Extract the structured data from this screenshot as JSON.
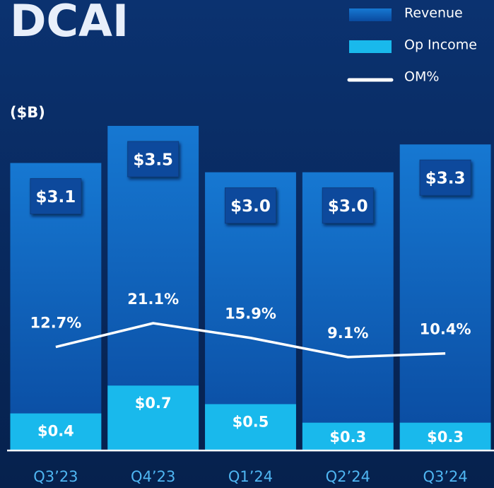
{
  "chart_data": {
    "type": "bar",
    "title": "DCAI",
    "y_label": "($B)",
    "categories": [
      "Q3’23",
      "Q4’23",
      "Q1’24",
      "Q2’24",
      "Q3’24"
    ],
    "series": [
      {
        "name": "Revenue",
        "color": "#1678d2",
        "values": [
          3.1,
          3.5,
          3.0,
          3.0,
          3.3
        ],
        "value_labels": [
          "$3.1",
          "$3.5",
          "$3.0",
          "$3.0",
          "$3.3"
        ]
      },
      {
        "name": "Op Income",
        "color": "#19b9ec",
        "values": [
          0.4,
          0.7,
          0.5,
          0.3,
          0.3
        ],
        "value_labels": [
          "$0.4",
          "$0.7",
          "$0.5",
          "$0.3",
          "$0.3"
        ]
      },
      {
        "name": "OM%",
        "color": "#ffffff",
        "axis": "y2",
        "values": [
          12.7,
          21.1,
          15.9,
          9.1,
          10.4
        ],
        "value_labels": [
          "12.7%",
          "21.1%",
          "15.9%",
          "9.1%",
          "10.4%"
        ]
      }
    ],
    "ylim": [
      0,
      3.5
    ],
    "y2lim": [
      -24,
      91
    ]
  }
}
